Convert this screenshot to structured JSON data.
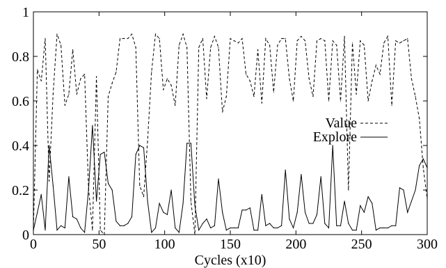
{
  "chart_data": {
    "type": "line",
    "title": "",
    "xlabel": "Cycles (x10)",
    "ylabel": "",
    "xlim": [
      0,
      300
    ],
    "ylim": [
      0,
      1
    ],
    "grid": false,
    "legend_position": "right-middle",
    "x_ticks": [
      "0",
      "50",
      "100",
      "150",
      "200",
      "250",
      "300"
    ],
    "y_ticks": [
      "0",
      "0.2",
      "0.4",
      "0.6",
      "0.8",
      "1"
    ],
    "x_tick_values": [
      0,
      50,
      100,
      150,
      200,
      250,
      300
    ],
    "y_tick_values": [
      0,
      0.2,
      0.4,
      0.6,
      0.8,
      1
    ],
    "series": [
      {
        "name": "Value",
        "style": "dashed",
        "color": "#000000",
        "x": [
          0,
          3,
          6,
          9,
          12,
          15,
          18,
          21,
          24,
          27,
          30,
          33,
          36,
          39,
          42,
          45,
          48,
          51,
          54,
          57,
          60,
          63,
          66,
          69,
          72,
          75,
          78,
          81,
          84,
          87,
          90,
          93,
          96,
          99,
          102,
          105,
          108,
          111,
          114,
          117,
          120,
          123,
          126,
          129,
          132,
          135,
          138,
          141,
          144,
          147,
          150,
          153,
          156,
          159,
          162,
          165,
          168,
          171,
          174,
          177,
          180,
          183,
          186,
          189,
          192,
          195,
          198,
          201,
          204,
          207,
          210,
          213,
          216,
          219,
          222,
          225,
          228,
          231,
          234,
          237,
          240,
          243,
          246,
          249,
          252,
          255,
          258,
          261,
          264,
          267,
          270,
          273,
          276,
          279,
          282,
          285,
          288,
          291,
          294,
          297,
          300
        ],
        "values": [
          0.02,
          0.74,
          0.69,
          0.88,
          0.24,
          0.63,
          0.9,
          0.85,
          0.58,
          0.63,
          0.83,
          0.63,
          0.7,
          0.72,
          0.21,
          0.02,
          0.71,
          0.02,
          0.0,
          0.62,
          0.68,
          0.73,
          0.88,
          0.88,
          0.88,
          0.9,
          0.84,
          0.22,
          0.17,
          0.42,
          0.73,
          0.9,
          0.88,
          0.65,
          0.7,
          0.67,
          0.58,
          0.85,
          0.9,
          0.84,
          0.15,
          0.0,
          0.84,
          0.88,
          0.61,
          0.84,
          0.89,
          0.84,
          0.55,
          0.62,
          0.88,
          0.87,
          0.86,
          0.88,
          0.72,
          0.69,
          0.62,
          0.83,
          0.59,
          0.88,
          0.85,
          0.64,
          0.85,
          0.88,
          0.88,
          0.7,
          0.6,
          0.87,
          0.89,
          0.87,
          0.7,
          0.62,
          0.87,
          0.88,
          0.87,
          0.6,
          0.87,
          0.85,
          0.6,
          0.89,
          0.2,
          0.86,
          0.63,
          0.87,
          0.85,
          0.6,
          0.69,
          0.76,
          0.72,
          0.86,
          0.89,
          0.58,
          0.87,
          0.86,
          0.87,
          0.88,
          0.7,
          0.62,
          0.52,
          0.3,
          0.16
        ]
      },
      {
        "name": "Explore",
        "style": "solid",
        "color": "#000000",
        "x": [
          0,
          3,
          6,
          9,
          12,
          15,
          18,
          21,
          24,
          27,
          30,
          33,
          36,
          39,
          42,
          45,
          48,
          51,
          54,
          57,
          60,
          63,
          66,
          69,
          72,
          75,
          78,
          81,
          84,
          87,
          90,
          93,
          96,
          99,
          102,
          105,
          108,
          111,
          114,
          117,
          120,
          123,
          126,
          129,
          132,
          135,
          138,
          141,
          144,
          147,
          150,
          153,
          156,
          159,
          162,
          165,
          168,
          171,
          174,
          177,
          180,
          183,
          186,
          189,
          192,
          195,
          198,
          201,
          204,
          207,
          210,
          213,
          216,
          219,
          222,
          225,
          228,
          231,
          234,
          237,
          240,
          243,
          246,
          249,
          252,
          255,
          258,
          261,
          264,
          267,
          270,
          273,
          276,
          279,
          282,
          285,
          288,
          291,
          294,
          297,
          300
        ],
        "values": [
          0.02,
          0.1,
          0.18,
          0.02,
          0.4,
          0.22,
          0.02,
          0.04,
          0.03,
          0.26,
          0.08,
          0.07,
          0.03,
          0.01,
          0.2,
          0.49,
          0.15,
          0.36,
          0.37,
          0.23,
          0.2,
          0.06,
          0.04,
          0.04,
          0.05,
          0.08,
          0.36,
          0.4,
          0.39,
          0.15,
          0.01,
          0.03,
          0.14,
          0.1,
          0.09,
          0.2,
          0.03,
          0.01,
          0.14,
          0.41,
          0.41,
          0.13,
          0.02,
          0.05,
          0.07,
          0.03,
          0.04,
          0.25,
          0.1,
          0.02,
          0.03,
          0.03,
          0.03,
          0.11,
          0.11,
          0.12,
          0.02,
          0.02,
          0.18,
          0.04,
          0.05,
          0.03,
          0.03,
          0.04,
          0.29,
          0.07,
          0.03,
          0.1,
          0.27,
          0.1,
          0.05,
          0.05,
          0.09,
          0.26,
          0.05,
          0.03,
          0.4,
          0.04,
          0.04,
          0.15,
          0.05,
          0.02,
          0.02,
          0.13,
          0.1,
          0.17,
          0.14,
          0.02,
          0.03,
          0.03,
          0.03,
          0.04,
          0.04,
          0.21,
          0.2,
          0.1,
          0.15,
          0.2,
          0.31,
          0.34,
          0.3
        ]
      }
    ]
  }
}
